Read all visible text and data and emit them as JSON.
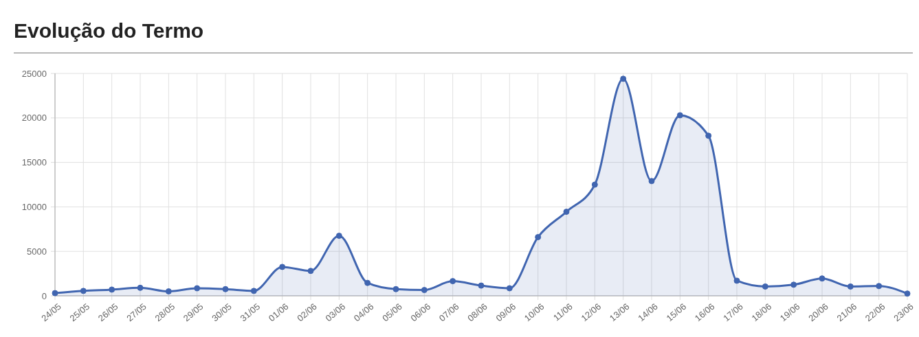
{
  "chart_data": {
    "type": "area",
    "title": "Evolução do Termo",
    "categories": [
      "24/05",
      "25/05",
      "26/05",
      "27/05",
      "28/05",
      "29/05",
      "30/05",
      "31/05",
      "01/06",
      "02/06",
      "03/06",
      "04/06",
      "05/06",
      "06/06",
      "07/06",
      "08/06",
      "09/06",
      "10/06",
      "11/06",
      "12/06",
      "13/06",
      "14/06",
      "15/06",
      "16/06",
      "17/06",
      "18/06",
      "19/06",
      "20/06",
      "21/06",
      "22/06",
      "23/06"
    ],
    "values": [
      300,
      550,
      700,
      900,
      500,
      850,
      750,
      550,
      3250,
      2800,
      6750,
      1450,
      750,
      650,
      1650,
      1150,
      850,
      6600,
      9450,
      12500,
      24400,
      12900,
      20300,
      18000,
      1700,
      1050,
      1250,
      1950,
      1050,
      1100,
      250
    ],
    "color": "#4065b0",
    "ylim": [
      0,
      25000
    ],
    "yticks": [
      0,
      5000,
      10000,
      15000,
      20000,
      25000
    ],
    "grid": true,
    "marker": "circle",
    "line_style": "solid"
  }
}
